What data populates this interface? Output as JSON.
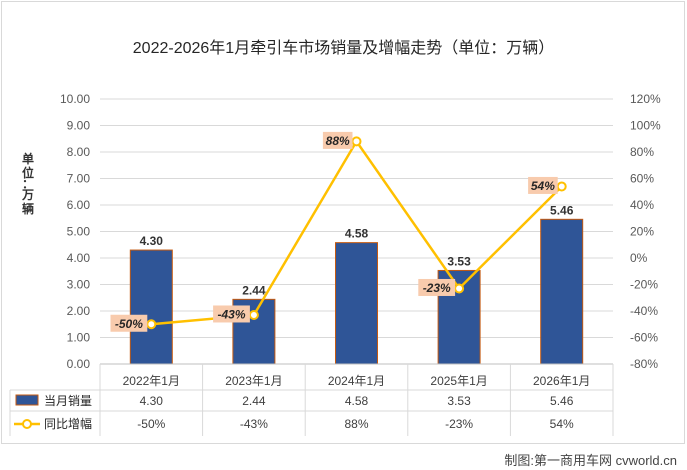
{
  "title": "2022-2026年1月牵引车市场销量及增幅走势（单位：万辆）",
  "y_axis_label": "单位：万辆",
  "credit": "制图:第一商用车网 cvworld.cn",
  "colors": {
    "bar": "#2f5597",
    "bar_border": "#c55a11",
    "line": "#ffc000",
    "label_bg": "#f8cbad",
    "grid": "#d9d9d9",
    "axis_text": "#595959"
  },
  "chart_data": {
    "type": "bar+line",
    "title": "2022-2026年1月牵引车市场销量及增幅走势（单位：万辆）",
    "categories": [
      "2022年1月",
      "2023年1月",
      "2024年1月",
      "2025年1月",
      "2026年1月"
    ],
    "series": [
      {
        "name": "当月销量",
        "type": "bar",
        "axis": "left",
        "values": [
          4.3,
          2.44,
          4.58,
          3.53,
          5.46
        ],
        "labels": [
          "4.30",
          "2.44",
          "4.58",
          "3.53",
          "5.46"
        ],
        "table_values": [
          "4.30",
          "2.44",
          "4.58",
          "3.53",
          "5.46"
        ]
      },
      {
        "name": "同比增幅",
        "type": "line",
        "axis": "right",
        "values": [
          -50,
          -43,
          88,
          -23,
          54
        ],
        "labels": [
          "-50%",
          "-43%",
          "88%",
          "-23%",
          "54%"
        ],
        "table_values": [
          "-50%",
          "-43%",
          "88%",
          "-23%",
          "54%"
        ]
      }
    ],
    "y_left": {
      "min": 0,
      "max": 10,
      "step": 1,
      "ticks": [
        "0.00",
        "1.00",
        "2.00",
        "3.00",
        "4.00",
        "5.00",
        "6.00",
        "7.00",
        "8.00",
        "9.00",
        "10.00"
      ]
    },
    "y_right": {
      "min": -80,
      "max": 120,
      "step": 20,
      "ticks": [
        "-80%",
        "-60%",
        "-40%",
        "-20%",
        "0%",
        "20%",
        "40%",
        "60%",
        "80%",
        "100%",
        "120%"
      ]
    },
    "ylabel": "单位：万辆",
    "grid": true,
    "legend": "data-table"
  }
}
